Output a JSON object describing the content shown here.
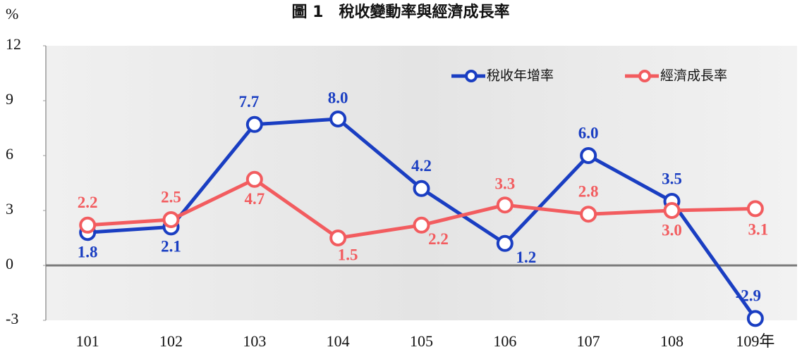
{
  "chart_data": {
    "type": "line",
    "title": "圖 1　稅收變動率與經濟成長率",
    "y_label": "%",
    "categories": [
      "101",
      "102",
      "103",
      "104",
      "105",
      "106",
      "107",
      "108",
      "109年"
    ],
    "series": [
      {
        "name": "稅收年增率",
        "color": "#1a3ec2",
        "values": [
          1.8,
          2.1,
          7.7,
          8.0,
          4.2,
          1.2,
          6.0,
          3.5,
          -2.9
        ],
        "value_labels": [
          "1.8",
          "2.1",
          "7.7",
          "8.0",
          "4.2",
          "1.2",
          "6.0",
          "3.5",
          "-2.9"
        ]
      },
      {
        "name": "經濟成長率",
        "color": "#f25c5f",
        "values": [
          2.2,
          2.5,
          4.7,
          1.5,
          2.2,
          3.3,
          2.8,
          3.0,
          3.1
        ],
        "value_labels": [
          "2.2",
          "2.5",
          "4.7",
          "1.5",
          "2.2",
          "3.3",
          "2.8",
          "3.0",
          "3.1"
        ]
      }
    ],
    "ylim": [
      -3,
      12
    ],
    "yticks": [
      -3,
      0,
      3,
      6,
      9,
      12
    ],
    "legend": "top-right"
  }
}
